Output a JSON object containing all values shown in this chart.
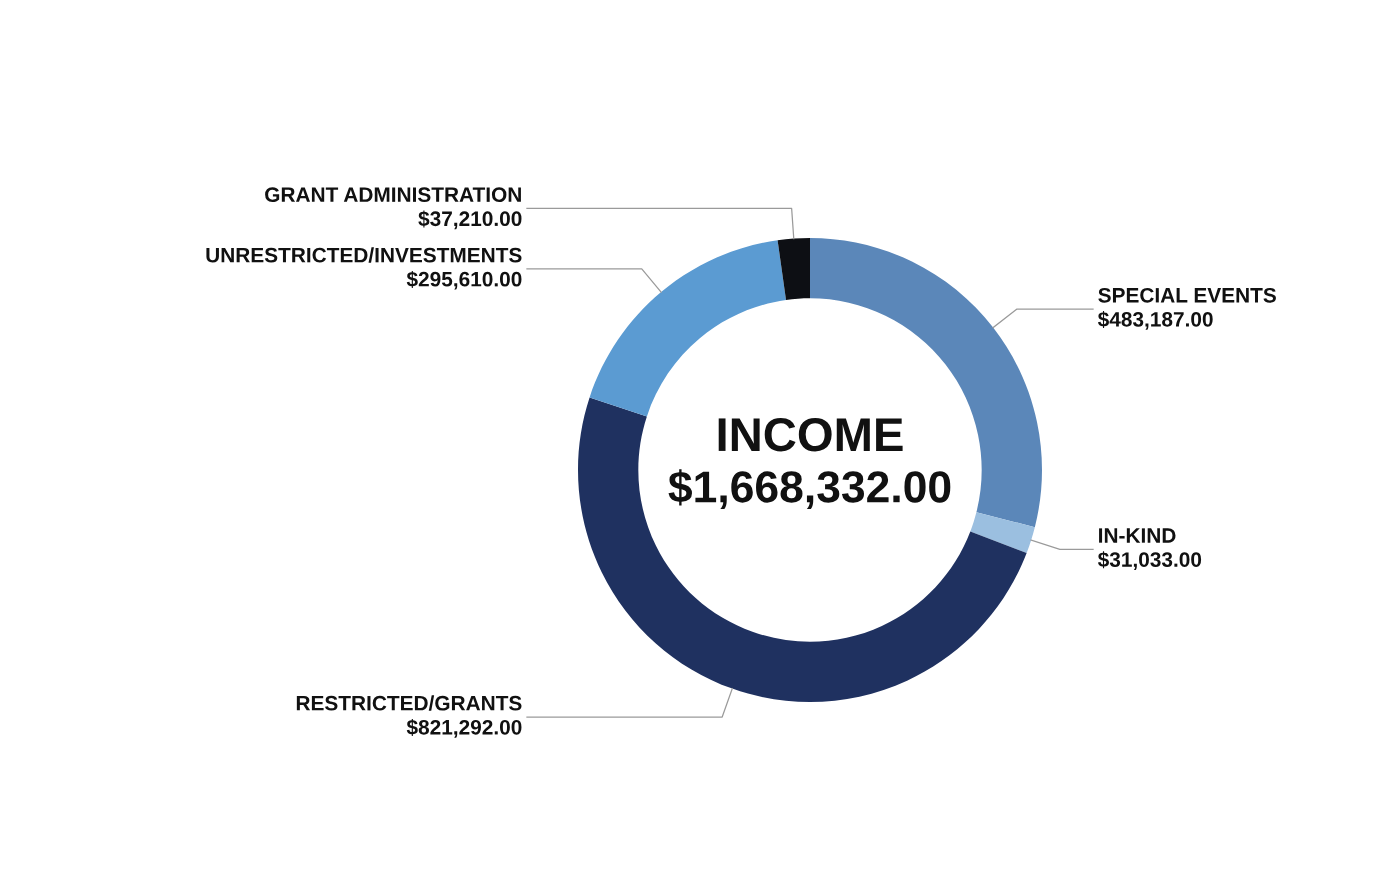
{
  "chart_data": {
    "type": "donut",
    "title": "INCOME",
    "subtitle": "$1,668,332.00",
    "categories": [
      "SPECIAL EVENTS",
      "IN-KIND",
      "RESTRICTED/GRANTS",
      "UNRESTRICTED/INVESTMENTS",
      "GRANT ADMINISTRATION"
    ],
    "values": [
      483187,
      31033,
      821292,
      295610,
      37210
    ],
    "value_labels": [
      "$483,187.00",
      "$31,033.00",
      "$821,292.00",
      "$295,610.00",
      "$37,210.00"
    ],
    "colors": [
      "#5b87b9",
      "#9bbfe0",
      "#1f3160",
      "#5b9bd2",
      "#0d0f14"
    ],
    "legend": false
  }
}
